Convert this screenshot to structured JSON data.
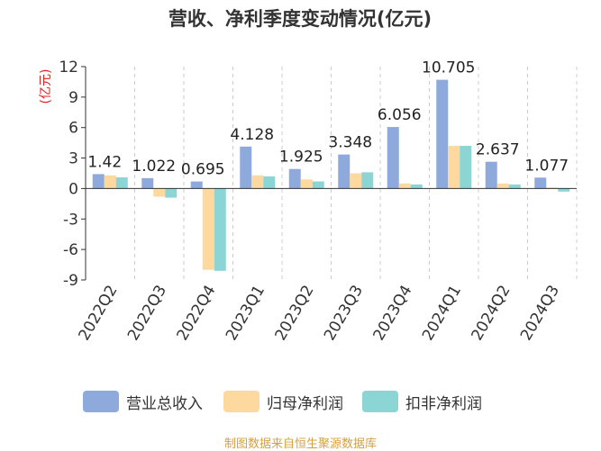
{
  "chart_data": {
    "type": "bar",
    "title": "营收、净利季度变动情况(亿元)",
    "ylabel": "(亿元)",
    "xlabel": "",
    "ylim": [
      -9,
      12
    ],
    "yticks": [
      -9,
      -6,
      -3,
      0,
      3,
      6,
      9,
      12
    ],
    "grid": "vertical dashed",
    "legend": "bottom",
    "categories": [
      "2022Q2",
      "2022Q3",
      "2022Q4",
      "2023Q1",
      "2023Q2",
      "2023Q3",
      "2023Q4",
      "2024Q1",
      "2024Q2",
      "2024Q3"
    ],
    "series": [
      {
        "name": "营业总收入",
        "color": "#8eaadc",
        "values": [
          1.42,
          1.022,
          0.695,
          4.128,
          1.925,
          3.348,
          6.056,
          10.705,
          2.637,
          1.077
        ],
        "labels": [
          "1.42",
          "1.022",
          "0.695",
          "4.128",
          "1.925",
          "3.348",
          "6.056",
          "10.705",
          "2.637",
          "1.077"
        ]
      },
      {
        "name": "归母净利润",
        "color": "#fdd9a0",
        "values": [
          1.3,
          -0.8,
          -8.0,
          1.3,
          0.9,
          1.5,
          0.5,
          4.2,
          0.5,
          0.1
        ]
      },
      {
        "name": "扣非净利润",
        "color": "#8cd5d5",
        "values": [
          1.1,
          -0.9,
          -8.1,
          1.2,
          0.7,
          1.6,
          0.4,
          4.2,
          0.4,
          -0.3
        ]
      }
    ]
  },
  "source": "制图数据来自恒生聚源数据库"
}
